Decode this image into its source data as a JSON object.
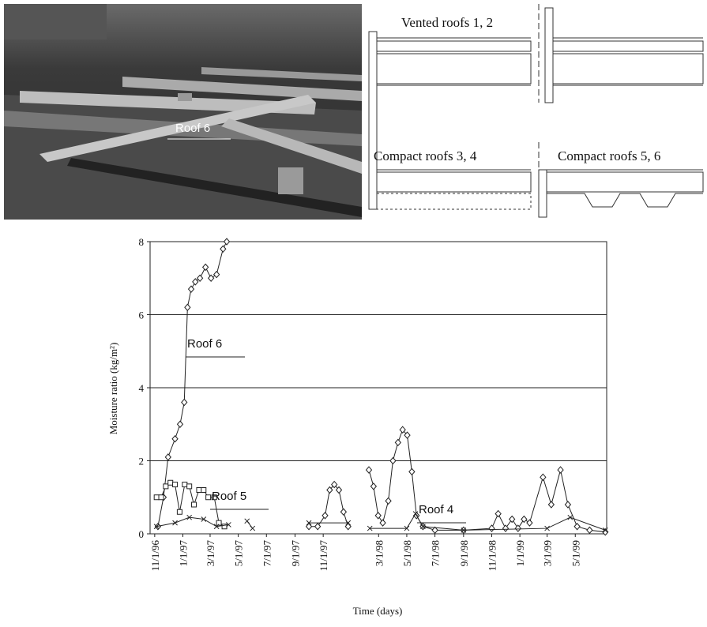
{
  "figure": {
    "photo_label": "Roof 6",
    "diagram_labels": [
      "Vented roofs 1, 2",
      "Compact roofs 3, 4",
      "Compact roofs 5, 6"
    ]
  },
  "chart_data": {
    "type": "line",
    "y_label": "Moisture ratio (kg/m²)",
    "x_label": "Time (days)",
    "ylim": [
      0,
      8
    ],
    "yticks": [
      0,
      2,
      4,
      6,
      8
    ],
    "grid": true,
    "xlim": [
      "1996-10-22",
      "1999-07-08"
    ],
    "xticks": [
      {
        "value": "1996-11-01",
        "label": "11/1/96"
      },
      {
        "value": "1997-01-01",
        "label": "1/1/97"
      },
      {
        "value": "1997-03-01",
        "label": "3/1/97"
      },
      {
        "value": "1997-05-01",
        "label": "5/1/97"
      },
      {
        "value": "1997-07-01",
        "label": "7/1/97"
      },
      {
        "value": "1997-09-01",
        "label": "9/1/97"
      },
      {
        "value": "1997-11-01",
        "label": "11/1/97"
      },
      {
        "value": "1998-03-01",
        "label": "3/1/98"
      },
      {
        "value": "1998-05-01",
        "label": "5/1/98"
      },
      {
        "value": "1998-07-01",
        "label": "7/1/98"
      },
      {
        "value": "1998-09-01",
        "label": "9/1/98"
      },
      {
        "value": "1998-11-01",
        "label": "11/1/98"
      },
      {
        "value": "1999-01-01",
        "label": "1/1/99"
      },
      {
        "value": "1999-03-01",
        "label": "3/1/99"
      },
      {
        "value": "1999-05-01",
        "label": "5/1/99"
      }
    ],
    "series": [
      {
        "name": "Roof 6",
        "color": "#222222",
        "marker": "diamond",
        "x": [
          "1996-11-08",
          "1996-11-20",
          "1996-11-30",
          "1996-12-15",
          "1996-12-26",
          "1997-01-04",
          "1997-01-11",
          "1997-01-19",
          "1997-01-28",
          "1997-02-07",
          "1997-02-19",
          "1997-03-03",
          "1997-03-15",
          "1997-03-29",
          "1997-04-06",
          null,
          "1997-10-01",
          "1997-10-20",
          "1997-11-05",
          "1997-11-15",
          "1997-11-25",
          "1997-12-05",
          "1997-12-15",
          "1997-12-25",
          null,
          "1998-02-08",
          "1998-02-18",
          "1998-02-28",
          "1998-03-10",
          "1998-03-22",
          "1998-04-01",
          "1998-04-12",
          "1998-04-22",
          "1998-05-02",
          "1998-05-12",
          "1998-05-22",
          "1998-06-05",
          "1998-07-01",
          "1998-09-01",
          "1998-11-01",
          "1998-11-15",
          "1998-12-01",
          "1998-12-15",
          "1998-12-28",
          "1999-01-10",
          "1999-01-22",
          "1999-02-20",
          "1999-03-10",
          "1999-03-30",
          "1999-04-15",
          "1999-05-05",
          "1999-06-01",
          "1999-07-05"
        ],
        "values": [
          0.2,
          1.0,
          2.1,
          2.6,
          3.0,
          3.6,
          6.2,
          6.7,
          6.9,
          7.0,
          7.3,
          7.0,
          7.1,
          7.8,
          8.0,
          null,
          0.2,
          0.2,
          0.5,
          1.2,
          1.35,
          1.2,
          0.6,
          0.2,
          null,
          1.75,
          1.3,
          0.5,
          0.3,
          0.9,
          2.0,
          2.5,
          2.85,
          2.7,
          1.7,
          0.5,
          0.2,
          0.1,
          0.1,
          0.15,
          0.55,
          0.15,
          0.4,
          0.15,
          0.4,
          0.3,
          1.55,
          0.8,
          1.75,
          0.8,
          0.2,
          0.1,
          0.05
        ]
      },
      {
        "name": "Roof 5",
        "color": "#222222",
        "marker": "square",
        "x": [
          "1996-11-05",
          "1996-11-15",
          "1996-11-25",
          "1996-12-05",
          "1996-12-15",
          "1996-12-25",
          "1997-01-05",
          "1997-01-15",
          "1997-01-25",
          "1997-02-05",
          "1997-02-15",
          "1997-02-25",
          "1997-03-10",
          "1997-03-20",
          "1997-04-01"
        ],
        "values": [
          1.0,
          1.0,
          1.3,
          1.4,
          1.35,
          0.6,
          1.35,
          1.3,
          0.8,
          1.2,
          1.2,
          1.0,
          1.0,
          0.3,
          0.2
        ]
      },
      {
        "name": "Roof 4",
        "color": "#222222",
        "marker": "cross",
        "x": [
          "1996-11-05",
          "1996-12-15",
          "1997-01-15",
          "1997-02-15",
          "1997-03-15",
          "1997-04-10",
          null,
          "1997-05-20",
          "1997-06-01",
          null,
          "1997-10-01",
          "1997-12-25",
          null,
          "1998-02-10",
          "1998-05-01",
          "1998-05-20",
          "1998-06-05",
          "1998-09-01",
          "1999-03-01",
          "1999-04-20",
          "1999-07-05"
        ],
        "values": [
          0.2,
          0.3,
          0.45,
          0.4,
          0.2,
          0.25,
          null,
          0.35,
          0.15,
          null,
          0.3,
          0.3,
          null,
          0.15,
          0.15,
          0.55,
          0.2,
          0.1,
          0.15,
          0.45,
          0.1
        ]
      }
    ]
  }
}
